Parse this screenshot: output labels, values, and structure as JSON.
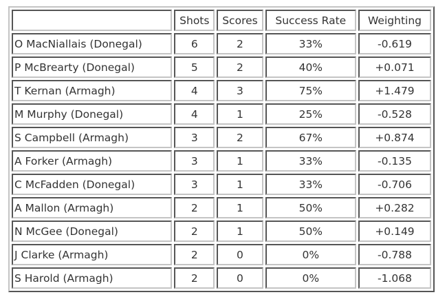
{
  "table": {
    "headers": [
      "",
      "Shots",
      "Scores",
      "Success Rate",
      "Weighting"
    ],
    "rows": [
      [
        "O MacNiallais (Donegal)",
        "6",
        "2",
        "33%",
        "-0.619"
      ],
      [
        "P McBrearty (Donegal)",
        "5",
        "2",
        "40%",
        "+0.071"
      ],
      [
        "T Kernan (Armagh)",
        "4",
        "3",
        "75%",
        "+1.479"
      ],
      [
        "M Murphy (Donegal)",
        "4",
        "1",
        "25%",
        "-0.528"
      ],
      [
        "S Campbell (Armagh)",
        "3",
        "2",
        "67%",
        "+0.874"
      ],
      [
        "A Forker (Armagh)",
        "3",
        "1",
        "33%",
        "-0.135"
      ],
      [
        "C McFadden (Donegal)",
        "3",
        "1",
        "33%",
        "-0.706"
      ],
      [
        "A Mallon (Armagh)",
        "2",
        "1",
        "50%",
        "+0.282"
      ],
      [
        "N McGee (Donegal)",
        "2",
        "1",
        "50%",
        "+0.149"
      ],
      [
        "J Clarke (Armagh)",
        "2",
        "0",
        "0%",
        "-0.788"
      ],
      [
        "S Harold (Armagh)",
        "2",
        "0",
        "0%",
        "-1.068"
      ]
    ]
  }
}
